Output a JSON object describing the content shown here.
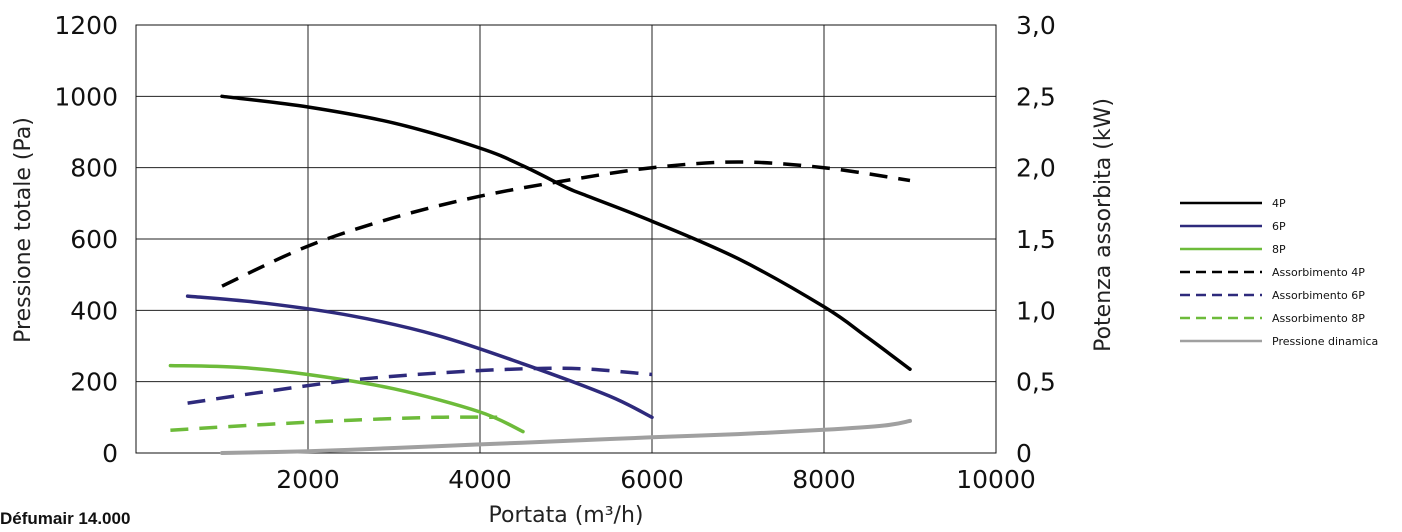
{
  "caption": "Défumair 14.000",
  "chart_data": {
    "type": "line",
    "xlabel": "Portata (m³/h)",
    "ylabel": "Pressione totale (Pa)",
    "y2label": "Potenza assorbita (kW)",
    "xlim": [
      0,
      10000
    ],
    "ylim": [
      0,
      1200
    ],
    "y2lim": [
      0,
      3.0
    ],
    "x_ticks": [
      "2000",
      "4000",
      "6000",
      "8000",
      "10000"
    ],
    "y_ticks": [
      "0",
      "200",
      "400",
      "600",
      "800",
      "1000",
      "1200"
    ],
    "y2_ticks": [
      "0",
      "0,5",
      "1,0",
      "1,5",
      "2,0",
      "2,5",
      "3,0"
    ],
    "grid": true,
    "legend_position": "right",
    "series": [
      {
        "name": "4P",
        "axis": "left",
        "style": "solid",
        "color": "#000000",
        "points": [
          [
            1000,
            1000
          ],
          [
            2000,
            970
          ],
          [
            3000,
            925
          ],
          [
            4000,
            855
          ],
          [
            4500,
            805
          ],
          [
            5000,
            745
          ],
          [
            5200,
            725
          ],
          [
            6000,
            650
          ],
          [
            7000,
            545
          ],
          [
            8000,
            410
          ],
          [
            8500,
            325
          ],
          [
            9000,
            235
          ]
        ]
      },
      {
        "name": "6P",
        "axis": "left",
        "style": "solid",
        "color": "#2e2a7c",
        "points": [
          [
            600,
            440
          ],
          [
            1500,
            420
          ],
          [
            2500,
            385
          ],
          [
            3500,
            330
          ],
          [
            4500,
            250
          ],
          [
            5500,
            160
          ],
          [
            6000,
            100
          ]
        ]
      },
      {
        "name": "8P",
        "axis": "left",
        "style": "solid",
        "color": "#6dbb3a",
        "points": [
          [
            400,
            245
          ],
          [
            1200,
            240
          ],
          [
            2000,
            220
          ],
          [
            3000,
            180
          ],
          [
            4000,
            115
          ],
          [
            4500,
            60
          ]
        ]
      },
      {
        "name": "Assorbimento 4P",
        "axis": "right",
        "style": "dashed",
        "color": "#000000",
        "points": [
          [
            1000,
            1.17
          ],
          [
            2000,
            1.45
          ],
          [
            3000,
            1.65
          ],
          [
            4000,
            1.8
          ],
          [
            5000,
            1.91
          ],
          [
            6000,
            2.0
          ],
          [
            7000,
            2.04
          ],
          [
            8000,
            2.0
          ],
          [
            9000,
            1.91
          ]
        ]
      },
      {
        "name": "Assorbimento 6P",
        "axis": "right",
        "style": "dashed",
        "color": "#2e2a7c",
        "points": [
          [
            600,
            0.35
          ],
          [
            1500,
            0.43
          ],
          [
            2500,
            0.51
          ],
          [
            3500,
            0.56
          ],
          [
            4500,
            0.59
          ],
          [
            5200,
            0.59
          ],
          [
            6000,
            0.55
          ]
        ]
      },
      {
        "name": "Assorbimento 8P",
        "axis": "right",
        "style": "dashed",
        "color": "#6dbb3a",
        "points": [
          [
            400,
            0.16
          ],
          [
            1500,
            0.2
          ],
          [
            2500,
            0.23
          ],
          [
            3500,
            0.25
          ],
          [
            4200,
            0.25
          ]
        ]
      },
      {
        "name": "Pressione dinamica",
        "axis": "left",
        "style": "solid",
        "color": "#a0a0a0",
        "points": [
          [
            1000,
            0
          ],
          [
            2000,
            5
          ],
          [
            3000,
            14
          ],
          [
            4000,
            24
          ],
          [
            5000,
            34
          ],
          [
            6000,
            44
          ],
          [
            7000,
            53
          ],
          [
            8000,
            65
          ],
          [
            8700,
            77
          ],
          [
            9000,
            90
          ]
        ]
      }
    ]
  }
}
